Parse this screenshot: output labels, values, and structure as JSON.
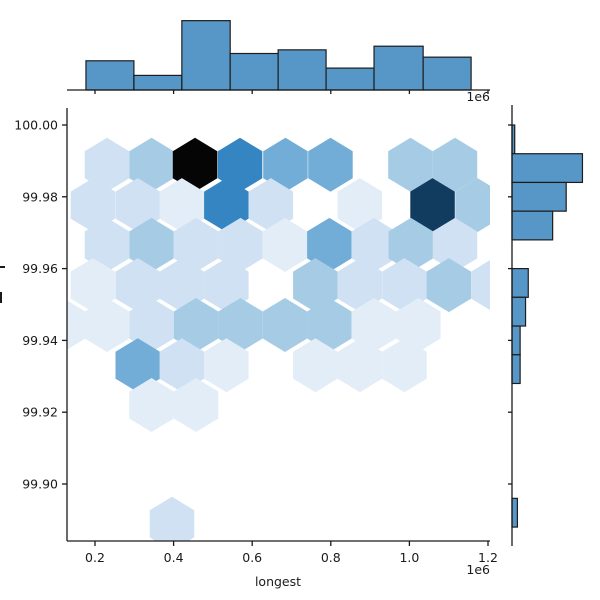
{
  "chart_data": {
    "type": "hexbin",
    "title": "",
    "xlabel": "longest",
    "ylabel_clipped": true,
    "x_offset_label_bottom": "1e6",
    "x_offset_label_top": "1e6",
    "x_ticks": {
      "values_1e6": [
        0.2,
        0.4,
        0.6,
        0.8,
        1.0,
        1.2
      ],
      "labels": [
        "0.2",
        "0.4",
        "0.6",
        "0.8",
        "1.0",
        "1.2"
      ]
    },
    "y_ticks": {
      "values": [
        100.0,
        99.98,
        99.96,
        99.94,
        99.92,
        99.9
      ],
      "labels": [
        "100.00",
        "99.98",
        "99.96",
        "99.94",
        "99.92",
        "99.90"
      ]
    },
    "x_range_1e6": [
      0.128,
      1.205
    ],
    "y_range": [
      99.884,
      100.005
    ],
    "grid": false,
    "legend": false,
    "palette_low_to_high": [
      "#e2edf8",
      "#cfe1f2",
      "#a6cbe5",
      "#72add7",
      "#3585c2",
      "#123c5f",
      "#050505"
    ],
    "marginal_bar_color": "#5697c8",
    "marginal_bar_edge_color": "#1c1c1c",
    "hexbin_points": [
      {
        "x": 0.2305,
        "y": 99.9889,
        "c": 1
      },
      {
        "x": 0.3438,
        "y": 99.9889,
        "c": 2
      },
      {
        "x": 0.4545,
        "y": 99.9889,
        "c": 6
      },
      {
        "x": 0.569,
        "y": 99.9889,
        "c": 4
      },
      {
        "x": 0.6847,
        "y": 99.9889,
        "c": 3
      },
      {
        "x": 0.7992,
        "y": 99.9889,
        "c": 3
      },
      {
        "x": 1.0027,
        "y": 99.9889,
        "c": 2
      },
      {
        "x": 1.116,
        "y": 99.9889,
        "c": 2
      },
      {
        "x": 0.1949,
        "y": 99.9777,
        "c": 1
      },
      {
        "x": 0.3088,
        "y": 99.9777,
        "c": 1
      },
      {
        "x": 0.4211,
        "y": 99.9777,
        "c": 0
      },
      {
        "x": 0.5343,
        "y": 99.9777,
        "c": 4
      },
      {
        "x": 0.6475,
        "y": 99.9777,
        "c": 1
      },
      {
        "x": 0.874,
        "y": 99.9777,
        "c": 0
      },
      {
        "x": 1.0588,
        "y": 99.9777,
        "c": 5
      },
      {
        "x": 1.1733,
        "y": 99.9777,
        "c": 2
      },
      {
        "x": 0.2305,
        "y": 99.9666,
        "c": 1
      },
      {
        "x": 0.3438,
        "y": 99.9666,
        "c": 2
      },
      {
        "x": 0.457,
        "y": 99.9666,
        "c": 1
      },
      {
        "x": 0.5702,
        "y": 99.9666,
        "c": 1
      },
      {
        "x": 0.6834,
        "y": 99.9666,
        "c": 0
      },
      {
        "x": 0.7964,
        "y": 99.9666,
        "c": 3
      },
      {
        "x": 0.9097,
        "y": 99.9666,
        "c": 1
      },
      {
        "x": 1.0038,
        "y": 99.9666,
        "c": 2
      },
      {
        "x": 1.116,
        "y": 99.9666,
        "c": 1
      },
      {
        "x": 0.1949,
        "y": 99.9554,
        "c": 0
      },
      {
        "x": 0.3088,
        "y": 99.9554,
        "c": 1
      },
      {
        "x": 0.4211,
        "y": 99.9554,
        "c": 1
      },
      {
        "x": 0.5343,
        "y": 99.9554,
        "c": 1
      },
      {
        "x": 0.7608,
        "y": 99.9554,
        "c": 2
      },
      {
        "x": 0.874,
        "y": 99.9554,
        "c": 1
      },
      {
        "x": 0.9873,
        "y": 99.9554,
        "c": 1
      },
      {
        "x": 1.1005,
        "y": 99.9554,
        "c": 2
      },
      {
        "x": 1.2137,
        "y": 99.9554,
        "c": 1
      },
      {
        "x": 0.1186,
        "y": 99.9443,
        "c": 0
      },
      {
        "x": 0.2305,
        "y": 99.9443,
        "c": 0
      },
      {
        "x": 0.3438,
        "y": 99.9443,
        "c": 1
      },
      {
        "x": 0.457,
        "y": 99.9443,
        "c": 2
      },
      {
        "x": 0.5702,
        "y": 99.9443,
        "c": 2
      },
      {
        "x": 0.6834,
        "y": 99.9443,
        "c": 2
      },
      {
        "x": 0.7964,
        "y": 99.9443,
        "c": 2
      },
      {
        "x": 0.9097,
        "y": 99.9443,
        "c": 0
      },
      {
        "x": 1.0229,
        "y": 99.9443,
        "c": 0
      },
      {
        "x": 0.3088,
        "y": 99.9331,
        "c": 3
      },
      {
        "x": 0.4211,
        "y": 99.9331,
        "c": 1
      },
      {
        "x": 0.5343,
        "y": 99.9331,
        "c": 0
      },
      {
        "x": 0.7608,
        "y": 99.9331,
        "c": 0
      },
      {
        "x": 0.874,
        "y": 99.9331,
        "c": 0
      },
      {
        "x": 0.9873,
        "y": 99.9331,
        "c": 0
      },
      {
        "x": 0.3438,
        "y": 99.922,
        "c": 0
      },
      {
        "x": 0.457,
        "y": 99.922,
        "c": 0
      },
      {
        "x": 0.3959,
        "y": 99.8889,
        "c": 1
      }
    ],
    "top_histogram": {
      "bin_edges_1e6": [
        0.177,
        0.299,
        0.421,
        0.544,
        0.666,
        0.788,
        0.91,
        1.035,
        1.157
      ],
      "counts": [
        8,
        4,
        19,
        10,
        11,
        6,
        12,
        9
      ]
    },
    "right_histogram": {
      "bin_edges": [
        100.0,
        99.992,
        99.984,
        99.976,
        99.968,
        99.96,
        99.952,
        99.944,
        99.936,
        99.928,
        99.92,
        99.912,
        99.904,
        99.896,
        99.888
      ],
      "counts": [
        1,
        26,
        20,
        15,
        0,
        6,
        5,
        3,
        3,
        0,
        0,
        0,
        0,
        2
      ]
    }
  }
}
